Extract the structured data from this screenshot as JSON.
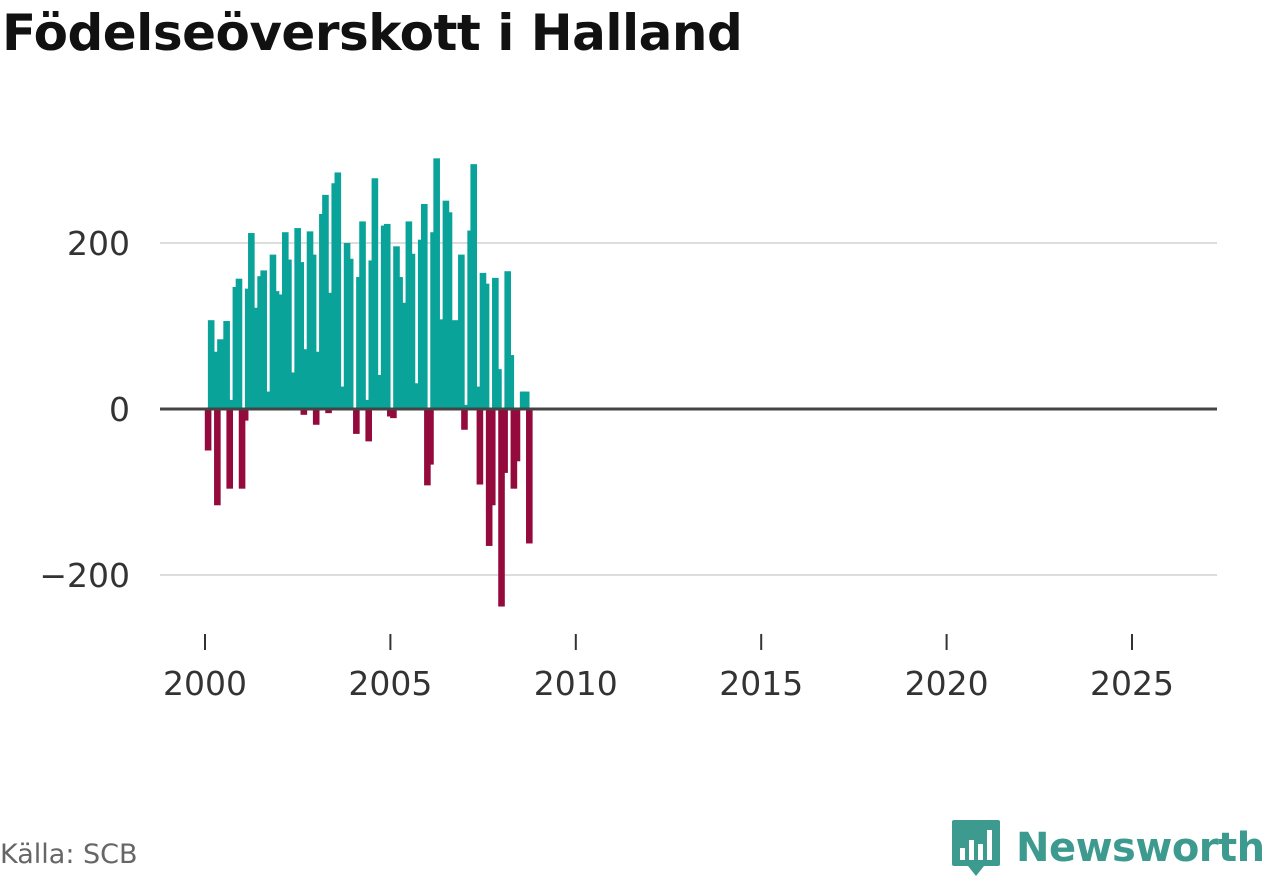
{
  "title": "Födelseöverskott i Halland",
  "source": "Källa: SCB",
  "brand": {
    "name": "Newsworthy",
    "icon": "newsworthy-logo-icon"
  },
  "colors": {
    "positive": "#0aa39a",
    "negative": "#950a3c",
    "grid": "#dddddd",
    "zero": "#444444",
    "brand": "#3d9a8e"
  },
  "chart_data": {
    "type": "bar",
    "title": "Födelseöverskott i Halland",
    "xlabel": "",
    "ylabel": "",
    "frequency": "monthly",
    "x_start": 2000.0833,
    "x_step": 0.0833,
    "xlim": [
      1999.75,
      2027.25
    ],
    "ylim": [
      -270,
      310
    ],
    "y_ticks": [
      -200,
      0,
      200
    ],
    "y_tick_labels": [
      "−200",
      "0",
      "200"
    ],
    "x_ticks": [
      2000,
      2005,
      2010,
      2015,
      2020,
      2025
    ],
    "x_tick_labels": [
      "2000",
      "2005",
      "2010",
      "2015",
      "2020",
      "2025"
    ],
    "values": [
      -50,
      107,
      69,
      -116,
      84,
      77,
      106,
      -96,
      11,
      147,
      157,
      -96,
      -14,
      145,
      212,
      27,
      122,
      160,
      167,
      21,
      5,
      186,
      142,
      61,
      138,
      213,
      180,
      43,
      44,
      218,
      177,
      -7,
      72,
      214,
      186,
      -19,
      69,
      235,
      258,
      -5,
      140,
      272,
      285,
      27,
      20,
      200,
      181,
      0,
      -30,
      159,
      226,
      11,
      -39,
      179,
      278,
      13,
      41,
      221,
      223,
      -9,
      -11,
      196,
      159,
      128,
      93,
      226,
      187,
      31,
      16,
      204,
      247,
      -92,
      -67,
      213,
      302,
      66,
      108,
      251,
      237,
      80,
      107,
      102,
      186,
      -25,
      5,
      215,
      295,
      27,
      -91,
      164,
      151,
      -165,
      -116,
      158,
      48,
      -238,
      -77,
      166,
      65,
      -96,
      -63,
      0,
      21,
      21,
      -162
    ]
  }
}
